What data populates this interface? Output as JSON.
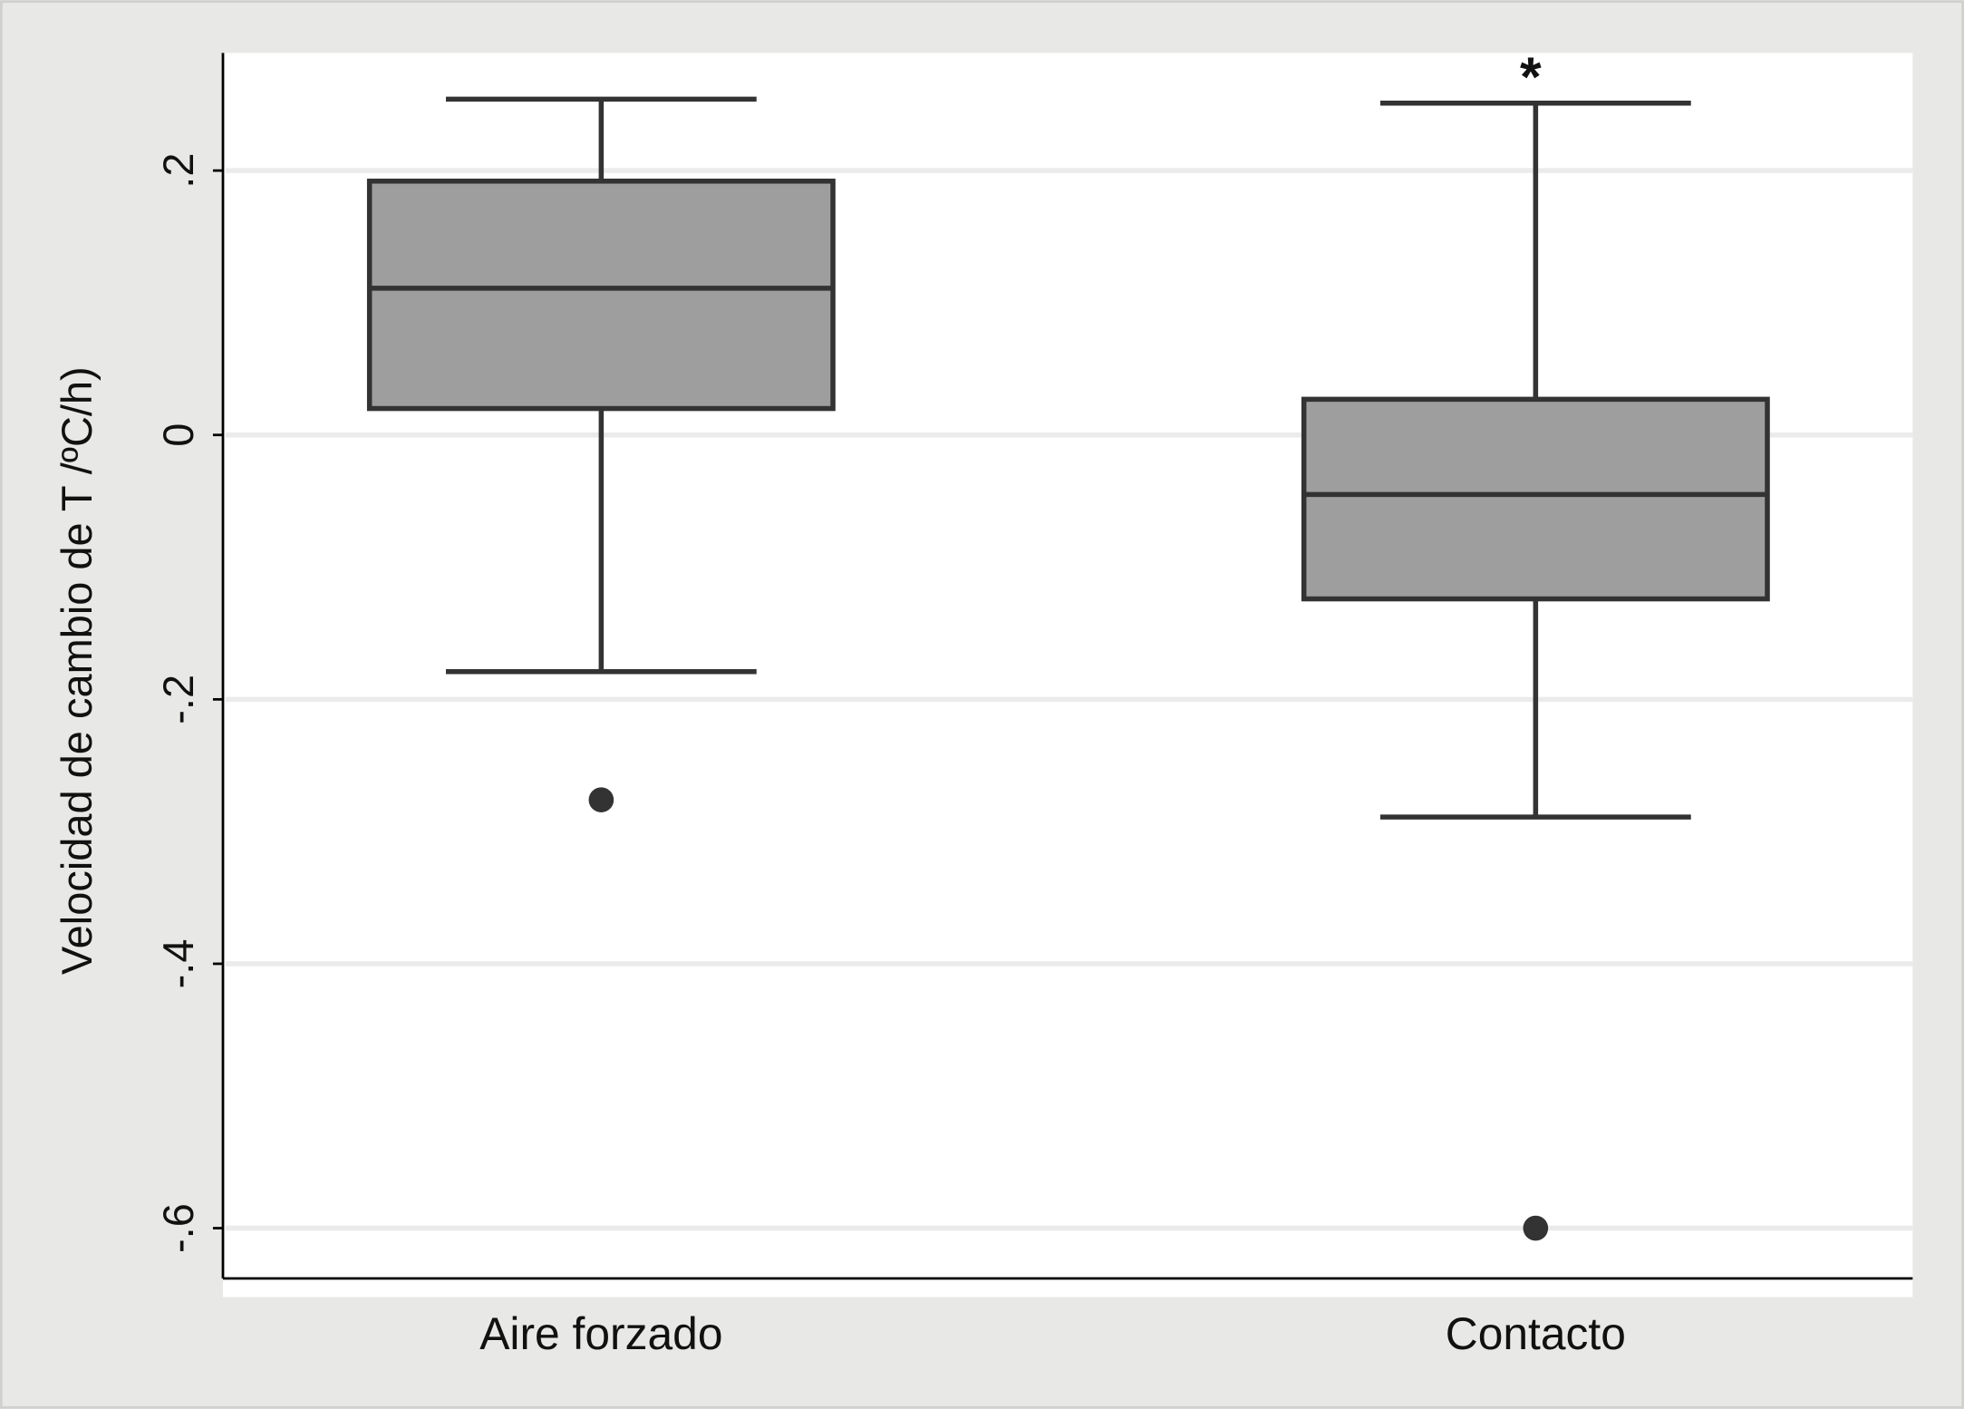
{
  "chart_data": {
    "type": "box",
    "y_label": "Velocidad de cambio de T /ºC/h)",
    "categories": [
      "Aire forzado",
      "Contacto"
    ],
    "boxes": [
      {
        "whisker_low": -0.179,
        "q1": 0.02,
        "median": 0.111,
        "q3": 0.192,
        "whisker_high": 0.254,
        "outliers": [
          -0.276
        ]
      },
      {
        "whisker_low": -0.289,
        "q1": -0.124,
        "median": -0.045,
        "q3": 0.027,
        "whisker_high": 0.251,
        "outliers": [
          -0.6
        ]
      }
    ],
    "fill_color": "#9e9e9e",
    "stroke_color": "#333333",
    "ylim": [
      -0.638,
      0.289
    ],
    "yticks": [
      {
        "value": 0.2,
        "label": ".2"
      },
      0,
      {
        "value": -0.2,
        "label": "-.2"
      },
      {
        "value": -0.4,
        "label": "-.4"
      },
      {
        "value": -0.6,
        "label": "-.6"
      }
    ],
    "grid": true,
    "annotations": [
      {
        "text": "*",
        "category": 1
      }
    ]
  }
}
